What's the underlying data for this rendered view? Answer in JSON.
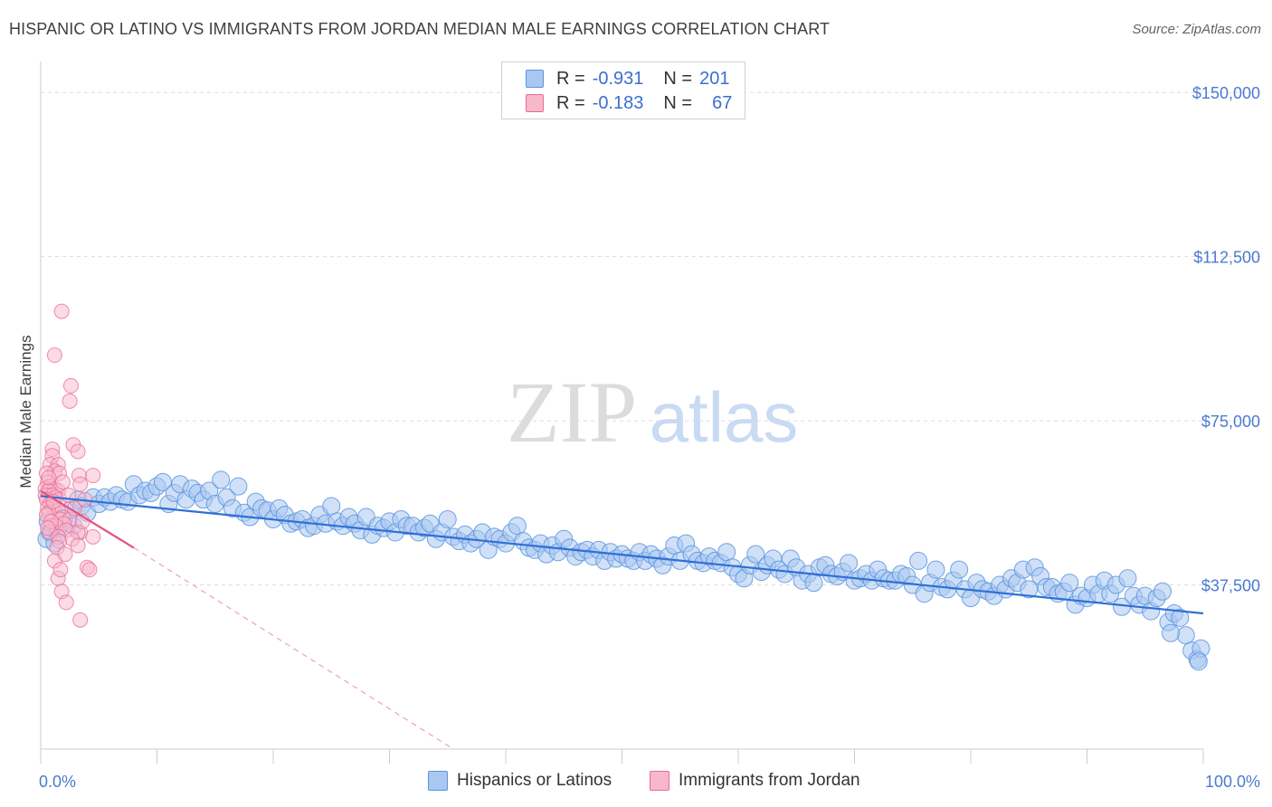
{
  "title": "HISPANIC OR LATINO VS IMMIGRANTS FROM JORDAN MEDIAN MALE EARNINGS CORRELATION CHART",
  "source": "Source: ZipAtlas.com",
  "watermark": {
    "zip": "ZIP",
    "atlas": "atlas"
  },
  "legend_top": {
    "rows": [
      {
        "r_label": "R =",
        "r_value": "-0.931",
        "n_label": "N =",
        "n_value": "201",
        "color": "#a9c8f0"
      },
      {
        "r_label": "R =",
        "r_value": "-0.183",
        "n_label": "N =",
        "n_value": "67",
        "color": "#f8b8cb"
      }
    ]
  },
  "legend_bottom": {
    "items": [
      {
        "label": "Hispanics or Latinos",
        "color": "#a9c8f0"
      },
      {
        "label": "Immigrants from Jordan",
        "color": "#f8b8cb"
      }
    ]
  },
  "chart_data": {
    "type": "scatter",
    "title": "HISPANIC OR LATINO VS IMMIGRANTS FROM JORDAN MEDIAN MALE EARNINGS CORRELATION CHART",
    "xlabel": "",
    "ylabel": "Median Male Earnings",
    "xlim": [
      0,
      100
    ],
    "ylim": [
      0,
      155000
    ],
    "x_tick_labels": [
      "0.0%",
      "100.0%"
    ],
    "y_ticks": [
      {
        "value": 37500,
        "label": "$37,500"
      },
      {
        "value": 75000,
        "label": "$75,000"
      },
      {
        "value": 112500,
        "label": "$112,500"
      },
      {
        "value": 150000,
        "label": "$150,000"
      }
    ],
    "series": [
      {
        "name": "Hispanics or Latinos",
        "color": "#5b93e0",
        "fill": "#a9c8f0",
        "trend": {
          "x": [
            0,
            100
          ],
          "y": [
            57800,
            31000
          ]
        },
        "points": [
          [
            0.5,
            48000
          ],
          [
            0.8,
            49500
          ],
          [
            1.2,
            47000
          ],
          [
            1.5,
            50500
          ],
          [
            2,
            52500
          ],
          [
            2.5,
            54500
          ],
          [
            2.8,
            51000
          ],
          [
            3.2,
            57000
          ],
          [
            3.5,
            55500
          ],
          [
            4,
            54000
          ],
          [
            4.5,
            57500
          ],
          [
            5,
            56000
          ],
          [
            5.5,
            57500
          ],
          [
            6,
            56500
          ],
          [
            6.5,
            58000
          ],
          [
            7,
            57000
          ],
          [
            7.5,
            56500
          ],
          [
            8,
            60500
          ],
          [
            8.5,
            58000
          ],
          [
            9,
            59000
          ],
          [
            9.5,
            58500
          ],
          [
            10,
            60000
          ],
          [
            10.5,
            61000
          ],
          [
            11,
            56000
          ],
          [
            11.5,
            58500
          ],
          [
            12,
            60500
          ],
          [
            12.5,
            57000
          ],
          [
            13,
            59500
          ],
          [
            13.5,
            58500
          ],
          [
            14,
            57000
          ],
          [
            14.5,
            59000
          ],
          [
            15,
            56000
          ],
          [
            15.5,
            61500
          ],
          [
            16,
            57500
          ],
          [
            16.5,
            55000
          ],
          [
            17,
            60000
          ],
          [
            17.5,
            54000
          ],
          [
            18,
            53000
          ],
          [
            18.5,
            56500
          ],
          [
            19,
            55000
          ],
          [
            19.5,
            54500
          ],
          [
            20,
            52500
          ],
          [
            20.5,
            55000
          ],
          [
            21,
            53500
          ],
          [
            21.5,
            51500
          ],
          [
            22,
            52000
          ],
          [
            22.5,
            52500
          ],
          [
            23,
            50500
          ],
          [
            23.5,
            51000
          ],
          [
            24,
            53500
          ],
          [
            24.5,
            51500
          ],
          [
            25,
            55500
          ],
          [
            25.5,
            52000
          ],
          [
            26,
            51000
          ],
          [
            26.5,
            53000
          ],
          [
            27,
            51500
          ],
          [
            27.5,
            50000
          ],
          [
            28,
            53000
          ],
          [
            28.5,
            49000
          ],
          [
            29,
            51000
          ],
          [
            29.5,
            50500
          ],
          [
            30,
            52000
          ],
          [
            30.5,
            49500
          ],
          [
            31,
            52500
          ],
          [
            31.5,
            51000
          ],
          [
            32,
            51000
          ],
          [
            32.5,
            49500
          ],
          [
            33,
            50500
          ],
          [
            33.5,
            51500
          ],
          [
            34,
            48000
          ],
          [
            34.5,
            49500
          ],
          [
            35,
            52500
          ],
          [
            35.5,
            48500
          ],
          [
            36,
            47500
          ],
          [
            36.5,
            49000
          ],
          [
            37,
            47000
          ],
          [
            37.5,
            48000
          ],
          [
            38,
            49500
          ],
          [
            38.5,
            45500
          ],
          [
            39,
            48500
          ],
          [
            39.5,
            48000
          ],
          [
            40,
            47000
          ],
          [
            40.5,
            49500
          ],
          [
            41,
            51000
          ],
          [
            41.5,
            47500
          ],
          [
            42,
            46000
          ],
          [
            42.5,
            45500
          ],
          [
            43,
            47000
          ],
          [
            43.5,
            44500
          ],
          [
            44,
            46500
          ],
          [
            44.5,
            45000
          ],
          [
            45,
            48000
          ],
          [
            45.5,
            46000
          ],
          [
            46,
            44000
          ],
          [
            46.5,
            45000
          ],
          [
            47,
            45500
          ],
          [
            47.5,
            44000
          ],
          [
            48,
            45500
          ],
          [
            48.5,
            43000
          ],
          [
            49,
            45000
          ],
          [
            49.5,
            43500
          ],
          [
            50,
            44500
          ],
          [
            50.5,
            43500
          ],
          [
            51,
            43000
          ],
          [
            51.5,
            45000
          ],
          [
            52,
            43000
          ],
          [
            52.5,
            44500
          ],
          [
            53,
            43500
          ],
          [
            53.5,
            42000
          ],
          [
            54,
            44000
          ],
          [
            54.5,
            46500
          ],
          [
            55,
            43000
          ],
          [
            55.5,
            47000
          ],
          [
            56,
            44500
          ],
          [
            56.5,
            43000
          ],
          [
            57,
            42500
          ],
          [
            57.5,
            44000
          ],
          [
            58,
            43000
          ],
          [
            58.5,
            42500
          ],
          [
            59,
            45000
          ],
          [
            59.5,
            41500
          ],
          [
            60,
            40000
          ],
          [
            60.5,
            39000
          ],
          [
            61,
            42000
          ],
          [
            61.5,
            44500
          ],
          [
            62,
            40500
          ],
          [
            62.5,
            42000
          ],
          [
            63,
            43500
          ],
          [
            63.5,
            41000
          ],
          [
            64,
            40000
          ],
          [
            64.5,
            43500
          ],
          [
            65,
            41500
          ],
          [
            65.5,
            38500
          ],
          [
            66,
            40000
          ],
          [
            66.5,
            38000
          ],
          [
            67,
            41500
          ],
          [
            67.5,
            42000
          ],
          [
            68,
            40000
          ],
          [
            68.5,
            39500
          ],
          [
            69,
            40500
          ],
          [
            69.5,
            42500
          ],
          [
            70,
            38500
          ],
          [
            70.5,
            39000
          ],
          [
            71,
            40000
          ],
          [
            71.5,
            38500
          ],
          [
            72,
            41000
          ],
          [
            72.5,
            39000
          ],
          [
            73,
            38500
          ],
          [
            73.5,
            38500
          ],
          [
            74,
            40000
          ],
          [
            74.5,
            39500
          ],
          [
            75,
            37500
          ],
          [
            75.5,
            43000
          ],
          [
            76,
            35500
          ],
          [
            76.5,
            38000
          ],
          [
            77,
            41000
          ],
          [
            77.5,
            37000
          ],
          [
            78,
            36500
          ],
          [
            78.5,
            38500
          ],
          [
            79,
            41000
          ],
          [
            79.5,
            36500
          ],
          [
            80,
            34500
          ],
          [
            80.5,
            38000
          ],
          [
            81,
            36500
          ],
          [
            81.5,
            36000
          ],
          [
            82,
            35000
          ],
          [
            82.5,
            37500
          ],
          [
            83,
            36500
          ],
          [
            83.5,
            39000
          ],
          [
            84,
            38000
          ],
          [
            84.5,
            41000
          ],
          [
            85,
            36500
          ],
          [
            85.5,
            41500
          ],
          [
            86,
            39500
          ],
          [
            86.5,
            37000
          ],
          [
            87,
            37000
          ],
          [
            87.5,
            35500
          ],
          [
            88,
            36000
          ],
          [
            88.5,
            38000
          ],
          [
            89,
            33000
          ],
          [
            89.5,
            35000
          ],
          [
            90,
            34500
          ],
          [
            90.5,
            37500
          ],
          [
            91,
            35500
          ],
          [
            91.5,
            38500
          ],
          [
            92,
            35500
          ],
          [
            92.5,
            37500
          ],
          [
            93,
            32500
          ],
          [
            93.5,
            39000
          ],
          [
            94,
            35000
          ],
          [
            94.5,
            33000
          ],
          [
            95,
            35000
          ],
          [
            95.5,
            31500
          ],
          [
            96,
            34500
          ],
          [
            96.5,
            36000
          ],
          [
            97,
            29000
          ],
          [
            97.5,
            31000
          ],
          [
            98,
            30000
          ],
          [
            98.5,
            26000
          ],
          [
            99,
            22500
          ],
          [
            99.5,
            20500
          ],
          [
            99.8,
            23000
          ],
          [
            97.2,
            26500
          ],
          [
            99.6,
            20000
          ],
          [
            0.6,
            52000
          ]
        ]
      },
      {
        "name": "Immigrants from Jordan",
        "color": "#e86a95",
        "fill": "#f8b8cb",
        "trend": {
          "x": [
            0,
            8
          ],
          "y": [
            59000,
            46000
          ]
        },
        "trend_extended": {
          "x": [
            8,
            35.5
          ],
          "y": [
            46000,
            0
          ]
        },
        "points": [
          [
            1.8,
            100000
          ],
          [
            1.2,
            90000
          ],
          [
            2.6,
            83000
          ],
          [
            2.5,
            79500
          ],
          [
            2.8,
            69500
          ],
          [
            3.2,
            68000
          ],
          [
            1.0,
            68500
          ],
          [
            1.0,
            67000
          ],
          [
            0.8,
            65000
          ],
          [
            1.5,
            65000
          ],
          [
            1.2,
            63500
          ],
          [
            0.5,
            63000
          ],
          [
            1.6,
            63000
          ],
          [
            3.3,
            62500
          ],
          [
            4.5,
            62500
          ],
          [
            0.6,
            61000
          ],
          [
            3.4,
            60500
          ],
          [
            0.8,
            60000
          ],
          [
            0.4,
            59500
          ],
          [
            1.2,
            59500
          ],
          [
            1.5,
            59000
          ],
          [
            0.7,
            59000
          ],
          [
            0.4,
            58000
          ],
          [
            1.0,
            58000
          ],
          [
            1.3,
            57500
          ],
          [
            1.6,
            57000
          ],
          [
            0.5,
            57000
          ],
          [
            0.8,
            56000
          ],
          [
            1.0,
            55500
          ],
          [
            0.6,
            55000
          ],
          [
            1.5,
            54500
          ],
          [
            0.7,
            54000
          ],
          [
            0.5,
            53500
          ],
          [
            1.9,
            53000
          ],
          [
            1.7,
            52500
          ],
          [
            2.5,
            52500
          ],
          [
            2.0,
            51500
          ],
          [
            0.9,
            51000
          ],
          [
            1.3,
            51000
          ],
          [
            2.2,
            50000
          ],
          [
            3.4,
            49500
          ],
          [
            3.2,
            49500
          ],
          [
            0.8,
            49500
          ],
          [
            1.5,
            48500
          ],
          [
            4.5,
            48500
          ],
          [
            2.7,
            48000
          ],
          [
            1.6,
            47500
          ],
          [
            3.2,
            46500
          ],
          [
            1.4,
            46000
          ],
          [
            1.2,
            43000
          ],
          [
            4.0,
            41500
          ],
          [
            4.2,
            41000
          ],
          [
            1.5,
            39000
          ],
          [
            1.8,
            36000
          ],
          [
            2.2,
            33500
          ],
          [
            3.4,
            29500
          ],
          [
            1.7,
            41000
          ],
          [
            2.4,
            58000
          ],
          [
            0.9,
            52000
          ],
          [
            1.1,
            56500
          ],
          [
            2.9,
            55000
          ],
          [
            3.8,
            57000
          ],
          [
            0.6,
            50500
          ],
          [
            1.9,
            61000
          ],
          [
            2.1,
            44500
          ],
          [
            3.6,
            52000
          ],
          [
            0.7,
            62000
          ]
        ]
      }
    ]
  }
}
